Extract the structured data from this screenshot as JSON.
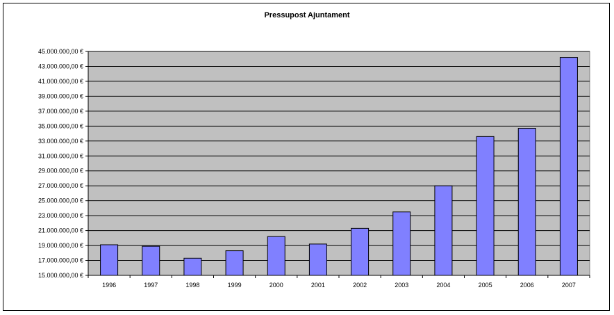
{
  "chart_data": {
    "type": "bar",
    "title": "Pressupost Ajuntament",
    "xlabel": "",
    "ylabel": "",
    "categories": [
      "1996",
      "1997",
      "1998",
      "1999",
      "2000",
      "2001",
      "2002",
      "2003",
      "2004",
      "2005",
      "2006",
      "2007"
    ],
    "values": [
      19100000,
      18900000,
      17300000,
      18300000,
      20200000,
      19200000,
      21300000,
      23500000,
      27000000,
      33600000,
      34700000,
      44200000
    ],
    "ylim": [
      15000000,
      45000000
    ],
    "yticks": [
      "15.000.000,00 €",
      "17.000.000,00 €",
      "19.000.000,00 €",
      "21.000.000,00 €",
      "23.000.000,00 €",
      "25.000.000,00 €",
      "27.000.000,00 €",
      "29.000.000,00 €",
      "31.000.000,00 €",
      "33.000.000,00 €",
      "35.000.000,00 €",
      "37.000.000,00 €",
      "39.000.000,00 €",
      "41.000.000,00 €",
      "43.000.000,00 €",
      "45.000.000,00 €"
    ],
    "ytick_values": [
      15000000,
      17000000,
      19000000,
      21000000,
      23000000,
      25000000,
      27000000,
      29000000,
      31000000,
      33000000,
      35000000,
      37000000,
      39000000,
      41000000,
      43000000,
      45000000
    ],
    "grid": true,
    "legend": "none",
    "colors": {
      "bar_fill": "#8080ff",
      "bar_stroke": "#000000",
      "plot_background": "#c0c0c0",
      "gridline": "#000000"
    }
  }
}
